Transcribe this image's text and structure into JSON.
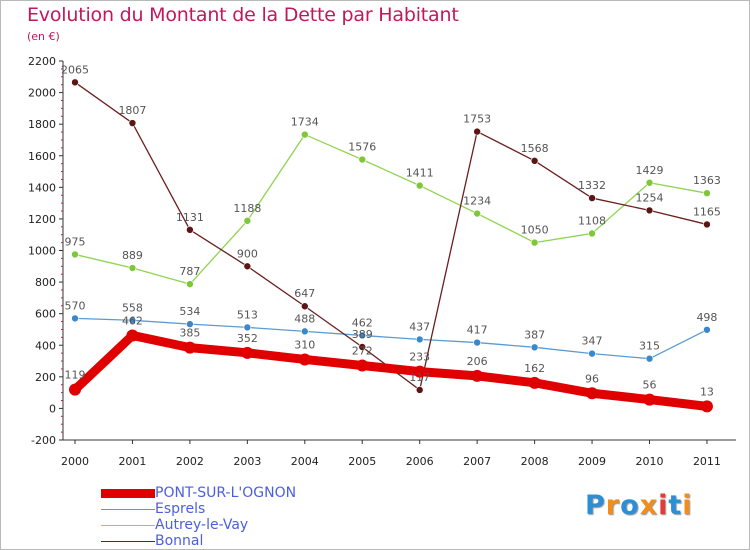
{
  "title": "Evolution du Montant de la Dette par Habitant",
  "unit": "(en €)",
  "logo": {
    "text": "Proxiti",
    "colors": [
      "#2a8fd6",
      "#f28c1a",
      "#2a8fd6",
      "#f28c1a",
      "#e53935",
      "#2a8fd6",
      "#f28c1a"
    ]
  },
  "chart_data": {
    "type": "line",
    "x": [
      "2000",
      "2001",
      "2002",
      "2003",
      "2004",
      "2005",
      "2006",
      "2007",
      "2008",
      "2009",
      "2010",
      "2011"
    ],
    "ylim": [
      -200,
      2200
    ],
    "yticks": [
      -200,
      0,
      200,
      400,
      600,
      800,
      1000,
      1200,
      1400,
      1600,
      1800,
      2000,
      2200
    ],
    "grid": false,
    "legend_position": "bottom-left",
    "series": [
      {
        "name": "PONT-SUR-L'OGNON",
        "color": "#e00000",
        "point_color": "#e00000",
        "width": 9,
        "point_radius": 6,
        "values": [
          119,
          462,
          385,
          352,
          310,
          272,
          233,
          206,
          162,
          96,
          56,
          13
        ],
        "labels": [
          "119",
          "462",
          "385",
          "352",
          "310",
          "272",
          "233",
          "206",
          "162",
          "96",
          "56",
          "13"
        ]
      },
      {
        "name": "Esprels",
        "color": "#5a9bd4",
        "point_color": "#3a87cc",
        "width": 1.3,
        "point_radius": 3.5,
        "values": [
          570,
          558,
          534,
          513,
          488,
          462,
          437,
          417,
          387,
          347,
          315,
          498
        ],
        "labels": [
          "570",
          "558",
          "534",
          "513",
          "488",
          "462",
          "437",
          "417",
          "387",
          "347",
          "315",
          "498"
        ]
      },
      {
        "name": "Autrey-le-Vay",
        "color": "#8fd44f",
        "point_color": "#7cc83a",
        "width": 1.3,
        "point_radius": 3.5,
        "values": [
          975,
          889,
          787,
          1188,
          1734,
          1576,
          1411,
          1234,
          1050,
          1108,
          1429,
          1363
        ],
        "labels": [
          "975",
          "889",
          "787",
          "1188",
          "1734",
          "1576",
          "1411",
          "1234",
          "1050",
          "1108",
          "1429",
          "1363"
        ]
      },
      {
        "name": "Bonnal",
        "color": "#6b1f1f",
        "point_color": "#5c1414",
        "width": 1.3,
        "point_radius": 3.5,
        "values": [
          2065,
          1807,
          1131,
          900,
          647,
          389,
          117,
          1753,
          1568,
          1332,
          1254,
          1165
        ],
        "labels": [
          "2065",
          "1807",
          "1131",
          "900",
          "647",
          "389",
          "117",
          "1753",
          "1568",
          "1332",
          "1254",
          "1165"
        ]
      }
    ]
  }
}
